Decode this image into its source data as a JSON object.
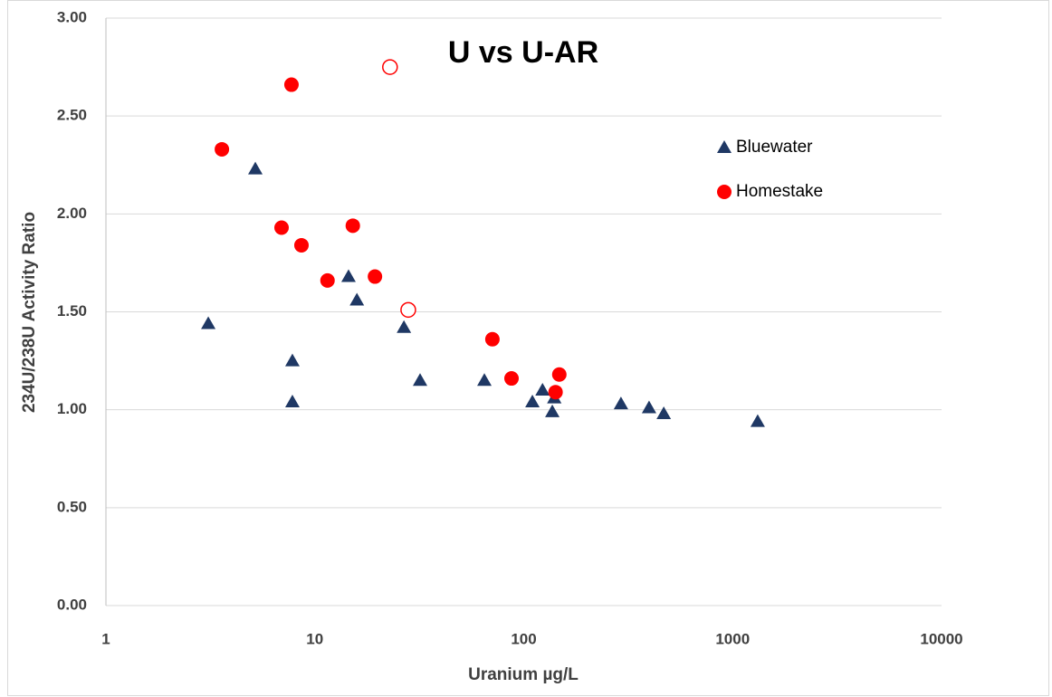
{
  "chart_data": {
    "type": "scatter",
    "title": "U vs U-AR",
    "xlabel": "Uranium µg/L",
    "ylabel": "234U/238U Activity Ratio",
    "xscale": "log",
    "xlim": [
      1,
      10000
    ],
    "xticks": [
      1,
      10,
      100,
      1000,
      10000
    ],
    "ylim": [
      0,
      3
    ],
    "yticks": [
      {
        "value": 0,
        "label": "0.00"
      },
      {
        "value": 0.5,
        "label": "0.50"
      },
      {
        "value": 1,
        "label": "1.00"
      },
      {
        "value": 1.5,
        "label": "1.50"
      },
      {
        "value": 2,
        "label": "2.00"
      },
      {
        "value": 2.5,
        "label": "2.50"
      },
      {
        "value": 3,
        "label": "3.00"
      }
    ],
    "grid": true,
    "legend": "right",
    "series": [
      {
        "name": "Bluewater",
        "color": "#1f3864",
        "marker": "triangle",
        "x": [
          3.09,
          5.19,
          7.81,
          7.81,
          14.5,
          15.9,
          26.7,
          31.9,
          64.8,
          110,
          123,
          137,
          140,
          292,
          398,
          468,
          1318
        ],
        "values": [
          1.44,
          2.23,
          1.25,
          1.04,
          1.68,
          1.56,
          1.42,
          1.15,
          1.15,
          1.04,
          1.1,
          0.99,
          1.06,
          1.03,
          1.01,
          0.98,
          0.94
        ]
      },
      {
        "name": "Homestake",
        "color": "#ff0000",
        "marker": "circle",
        "x": [
          3.59,
          7.73,
          6.93,
          8.63,
          15.2,
          11.5,
          19.4,
          70.8,
          87.4,
          142,
          148
        ],
        "values": [
          2.33,
          2.66,
          1.93,
          1.84,
          1.94,
          1.66,
          1.68,
          1.36,
          1.16,
          1.09,
          1.18
        ]
      },
      {
        "color": "#ff0000",
        "marker": "circle",
        "hollow": true,
        "x": [
          22.9,
          28.0
        ],
        "values": [
          2.75,
          1.51
        ]
      }
    ]
  }
}
